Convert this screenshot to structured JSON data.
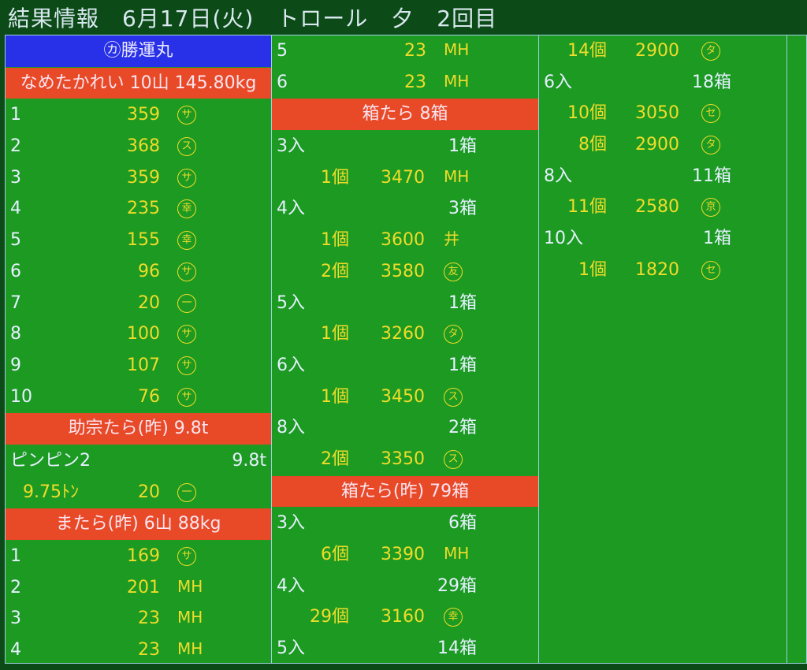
{
  "title": "結果情報　6月17日(火)　トロール　夕　2回目",
  "colors": {
    "background": "#1c9a22",
    "blue_header": "#2830e8",
    "red_header": "#e84a28",
    "value": "#f0dc2a",
    "label": "#e6f0ff"
  },
  "columns": [
    {
      "rows": [
        {
          "type": "blue",
          "text": "㋕勝運丸"
        },
        {
          "type": "red",
          "text": "なめたかれい 10山 145.80kg"
        },
        {
          "type": "num",
          "a": "1",
          "b": "359",
          "m": "サ"
        },
        {
          "type": "num",
          "a": "2",
          "b": "368",
          "m": "ス"
        },
        {
          "type": "num",
          "a": "3",
          "b": "359",
          "m": "サ"
        },
        {
          "type": "num",
          "a": "4",
          "b": "235",
          "m": "幸"
        },
        {
          "type": "num",
          "a": "5",
          "b": "155",
          "m": "幸"
        },
        {
          "type": "num",
          "a": "6",
          "b": "96",
          "m": "サ"
        },
        {
          "type": "num",
          "a": "7",
          "b": "20",
          "m": "一"
        },
        {
          "type": "num",
          "a": "8",
          "b": "100",
          "m": "サ"
        },
        {
          "type": "num",
          "a": "9",
          "b": "107",
          "m": "サ"
        },
        {
          "type": "num",
          "a": "10",
          "b": "76",
          "m": "サ"
        },
        {
          "type": "red",
          "text": "助宗たら(昨) 9.8t"
        },
        {
          "type": "kv",
          "a": "ピンピン2",
          "b": "9.8t"
        },
        {
          "type": "lot1",
          "a": "9.75ﾄﾝ",
          "b": "20",
          "m": "一"
        },
        {
          "type": "red",
          "text": "またら(昨) 6山 88kg"
        },
        {
          "type": "num",
          "a": "1",
          "b": "169",
          "m": "サ"
        },
        {
          "type": "num",
          "a": "2",
          "b": "201",
          "m": "MH",
          "plain": true
        },
        {
          "type": "num",
          "a": "3",
          "b": "23",
          "m": "MH",
          "plain": true
        },
        {
          "type": "num",
          "a": "4",
          "b": "23",
          "m": "MH",
          "plain": true
        }
      ]
    },
    {
      "rows": [
        {
          "type": "num",
          "a": "5",
          "b": "23",
          "m": "MH",
          "plain": true
        },
        {
          "type": "num",
          "a": "6",
          "b": "23",
          "m": "MH",
          "plain": true
        },
        {
          "type": "red",
          "text": "箱たら 8箱"
        },
        {
          "type": "kv",
          "a": "3入",
          "b": "1箱"
        },
        {
          "type": "lot",
          "a": "1個",
          "b": "3470",
          "m": "MH",
          "plain": true
        },
        {
          "type": "kv",
          "a": "4入",
          "b": "3箱"
        },
        {
          "type": "lot",
          "a": "1個",
          "b": "3600",
          "m": "井",
          "plain": true
        },
        {
          "type": "lot",
          "a": "2個",
          "b": "3580",
          "m": "友"
        },
        {
          "type": "kv",
          "a": "5入",
          "b": "1箱"
        },
        {
          "type": "lot",
          "a": "1個",
          "b": "3260",
          "m": "タ"
        },
        {
          "type": "kv",
          "a": "6入",
          "b": "1箱"
        },
        {
          "type": "lot",
          "a": "1個",
          "b": "3450",
          "m": "ス"
        },
        {
          "type": "kv",
          "a": "8入",
          "b": "2箱"
        },
        {
          "type": "lot",
          "a": "2個",
          "b": "3350",
          "m": "ス"
        },
        {
          "type": "red",
          "text": "箱たら(昨) 79箱"
        },
        {
          "type": "kv",
          "a": "3入",
          "b": "6箱"
        },
        {
          "type": "lot",
          "a": "6個",
          "b": "3390",
          "m": "MH",
          "plain": true
        },
        {
          "type": "kv",
          "a": "4入",
          "b": "29箱"
        },
        {
          "type": "lot",
          "a": "29個",
          "b": "3160",
          "m": "幸"
        },
        {
          "type": "kv",
          "a": "5入",
          "b": "14箱"
        }
      ]
    },
    {
      "rows": [
        {
          "type": "lot",
          "a": "14個",
          "b": "2900",
          "m": "タ"
        },
        {
          "type": "kv",
          "a": "6入",
          "b": "18箱"
        },
        {
          "type": "lot",
          "a": "10個",
          "b": "3050",
          "m": "セ"
        },
        {
          "type": "lot",
          "a": "8個",
          "b": "2900",
          "m": "タ"
        },
        {
          "type": "kv",
          "a": "8入",
          "b": "11箱"
        },
        {
          "type": "lot",
          "a": "11個",
          "b": "2580",
          "m": "京"
        },
        {
          "type": "kv",
          "a": "10入",
          "b": "1箱"
        },
        {
          "type": "lot",
          "a": "1個",
          "b": "1820",
          "m": "セ"
        }
      ]
    }
  ]
}
